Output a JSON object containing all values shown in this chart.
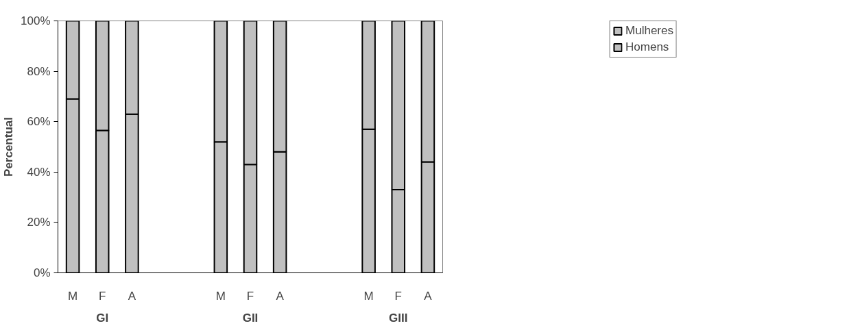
{
  "chart_data": {
    "type": "bar",
    "stacked": true,
    "ylabel": "Percentual",
    "categories": [
      "M",
      "F",
      "A",
      null,
      null,
      "M",
      "F",
      "A",
      null,
      null,
      "M",
      "F",
      "A"
    ],
    "series": [
      {
        "name": "Homens",
        "color": "#c0c0c0",
        "values": [
          69,
          56.5,
          63,
          null,
          null,
          52,
          43,
          48,
          null,
          null,
          57,
          33,
          44
        ]
      },
      {
        "name": "Mulheres",
        "color": "#c0c0c0",
        "values": [
          31,
          43.5,
          37,
          null,
          null,
          48,
          57,
          52,
          null,
          null,
          43,
          67,
          56
        ]
      }
    ],
    "annotations": [
      "GI",
      "GII",
      "GIII"
    ],
    "ylim": [
      0,
      100
    ],
    "yticks": [
      {
        "value": 0,
        "label": "0%"
      },
      {
        "value": 20,
        "label": "20%"
      },
      {
        "value": 40,
        "label": "40%"
      },
      {
        "value": 60,
        "label": "60%"
      },
      {
        "value": 80,
        "label": "80%"
      },
      {
        "value": 100,
        "label": "100%"
      }
    ],
    "grid": false,
    "legend": "top right"
  }
}
